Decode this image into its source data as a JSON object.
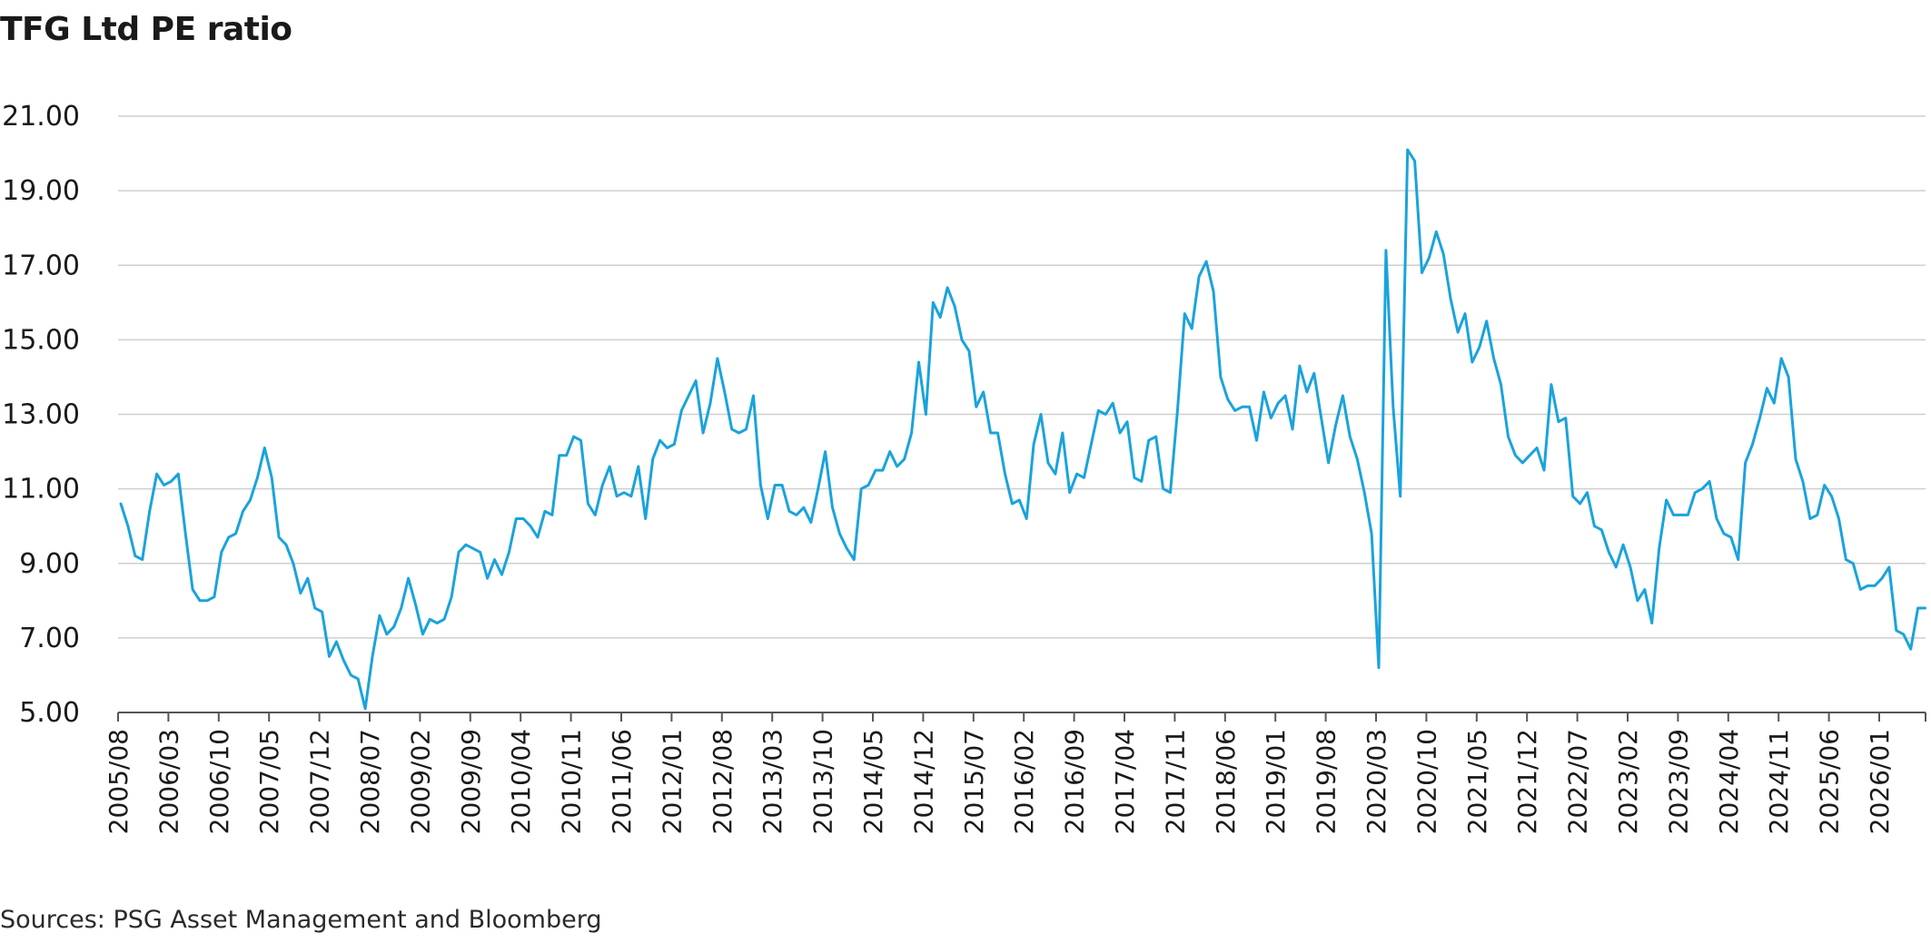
{
  "chart_data": {
    "type": "line",
    "title": "TFG Ltd PE ratio",
    "source": "Sources: PSG Asset Management and Bloomberg",
    "xlabel": "",
    "ylabel": "",
    "ylim": [
      5,
      21
    ],
    "yticks": [
      "5.00",
      "7.00",
      "9.00",
      "11.00",
      "13.00",
      "15.00",
      "17.00",
      "19.00",
      "21.00"
    ],
    "xtick_labels": [
      "2005/08",
      "2006/03",
      "2006/10",
      "2007/05",
      "2007/12",
      "2008/07",
      "2009/02",
      "2009/09",
      "2010/04",
      "2010/11",
      "2011/06",
      "2012/01",
      "2012/08",
      "2013/03",
      "2013/10",
      "2014/05",
      "2014/12",
      "2015/07",
      "2016/02",
      "2016/09",
      "2017/04",
      "2017/11",
      "2018/06",
      "2019/01",
      "2019/08",
      "2020/03",
      "2020/10",
      "2021/05",
      "2021/12",
      "2022/07",
      "2023/02",
      "2023/09",
      "2024/04",
      "2024/11",
      "2025/06",
      "2026/01"
    ],
    "grid": true,
    "line_color": "#1aa3dc",
    "series": [
      {
        "values": [
          10.6,
          10.0,
          9.2,
          9.1,
          10.4,
          11.4,
          11.1,
          11.2,
          11.4,
          9.8,
          8.3,
          8.0,
          8.0,
          8.1,
          9.3,
          9.7,
          9.8,
          10.4,
          10.7,
          11.3,
          12.1,
          11.3,
          9.7,
          9.5,
          9.0,
          8.2,
          8.6,
          7.8,
          7.7,
          6.5,
          6.9,
          6.4,
          6.0,
          5.9,
          5.1,
          6.5,
          7.6,
          7.1,
          7.3,
          7.8,
          8.6,
          7.9,
          7.1,
          7.5,
          7.4,
          7.5,
          8.1,
          9.3,
          9.5,
          9.4,
          9.3,
          8.6,
          9.1,
          8.7,
          9.3,
          10.2,
          10.2,
          10.0,
          9.7,
          10.4,
          10.3,
          11.9,
          11.9,
          12.4,
          12.3,
          10.6,
          10.3,
          11.1,
          11.6,
          10.8,
          10.9,
          10.8,
          11.6,
          10.2,
          11.8,
          12.3,
          12.1,
          12.2,
          13.1,
          13.5,
          13.9,
          12.5,
          13.3,
          14.5,
          13.6,
          12.6,
          12.5,
          12.6,
          13.5,
          11.1,
          10.2,
          11.1,
          11.1,
          10.4,
          10.3,
          10.5,
          10.1,
          11.0,
          12.0,
          10.5,
          9.8,
          9.4,
          9.1,
          11.0,
          11.1,
          11.5,
          11.5,
          12.0,
          11.6,
          11.8,
          12.5,
          14.4,
          13.0,
          16.0,
          15.6,
          16.4,
          15.9,
          15.0,
          14.7,
          13.2,
          13.6,
          12.5,
          12.5,
          11.4,
          10.6,
          10.7,
          10.2,
          12.2,
          13.0,
          11.7,
          11.4,
          12.5,
          10.9,
          11.4,
          11.3,
          12.2,
          13.1,
          13.0,
          13.3,
          12.5,
          12.8,
          11.3,
          11.2,
          12.3,
          12.4,
          11.0,
          10.9,
          13.1,
          15.7,
          15.3,
          16.7,
          17.1,
          16.3,
          14.0,
          13.4,
          13.1,
          13.2,
          13.2,
          12.3,
          13.6,
          12.9,
          13.3,
          13.5,
          12.6,
          14.3,
          13.6,
          14.1,
          12.9,
          11.7,
          12.7,
          13.5,
          12.4,
          11.8,
          10.9,
          9.8,
          6.2,
          17.4,
          13.2,
          10.8,
          20.1,
          19.8,
          16.8,
          17.2,
          17.9,
          17.3,
          16.1,
          15.2,
          15.7,
          14.4,
          14.8,
          15.5,
          14.5,
          13.8,
          12.4,
          11.9,
          11.7,
          11.9,
          12.1,
          11.5,
          13.8,
          12.8,
          12.9,
          10.8,
          10.6,
          10.9,
          10.0,
          9.9,
          9.3,
          8.9,
          9.5,
          8.9,
          8.0,
          8.3,
          7.4,
          9.4,
          10.7,
          10.3,
          10.3,
          10.3,
          10.9,
          11.0,
          11.2,
          10.2,
          9.8,
          9.7,
          9.1,
          11.7,
          12.2,
          12.9,
          13.7,
          13.3,
          14.5,
          14.0,
          11.8,
          11.2,
          10.2,
          10.3,
          11.1,
          10.8,
          10.2,
          9.1,
          9.0,
          8.3,
          8.4,
          8.4,
          8.6,
          8.9,
          7.2,
          7.1,
          6.7,
          7.8,
          7.8
        ]
      }
    ]
  }
}
